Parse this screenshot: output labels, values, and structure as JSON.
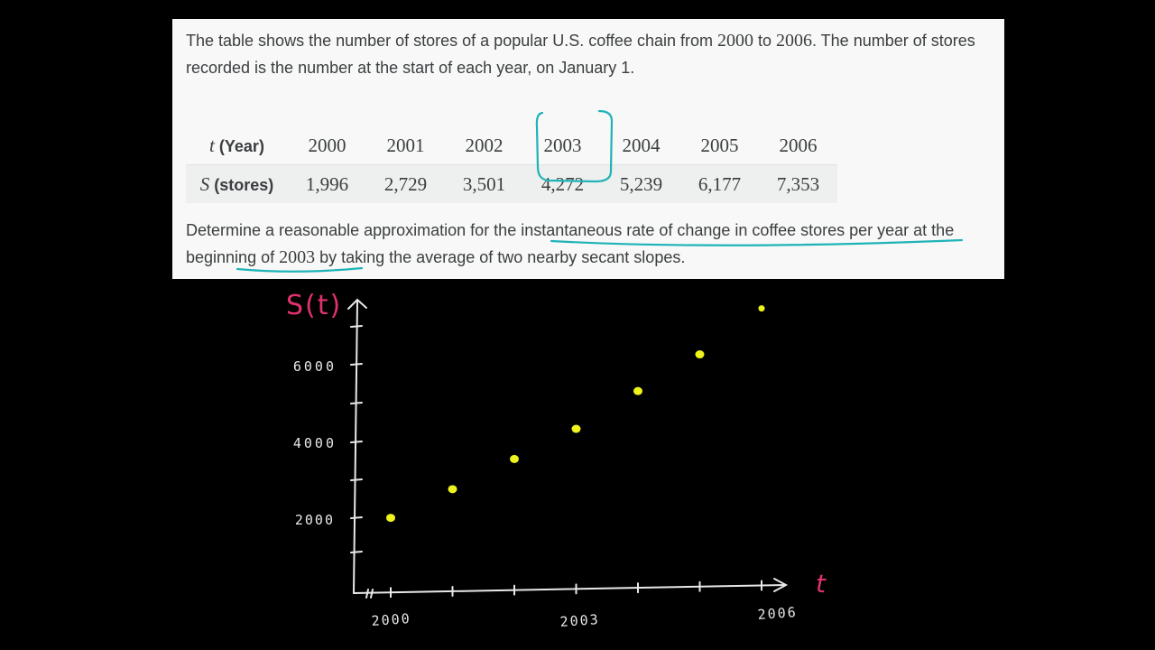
{
  "problem": {
    "intro_a": "The table shows the number of stores of a popular U.S. coffee chain from ",
    "intro_year_start": "2000",
    "intro_b": " to ",
    "intro_year_end": "2006",
    "intro_c": ". The number of stores recorded is the number at the start of each year, on January 1.",
    "question_a": "Determine a reasonable approximation for the ",
    "question_highlight": "instantaneous rate of change in coffee stores per year",
    "question_b": " at the ",
    "question_highlight2_text": "beginning of ",
    "question_highlight2_year": "2003",
    "question_c": " by taking the average of two nearby secant slopes."
  },
  "table": {
    "year_var": "t",
    "year_label": "(Year)",
    "stores_var": "S",
    "stores_label": "(stores)",
    "years": [
      "2000",
      "2001",
      "2002",
      "2003",
      "2004",
      "2005",
      "2006"
    ],
    "stores": [
      "1,996",
      "2,729",
      "3,501",
      "4,272",
      "5,239",
      "6,177",
      "7,353"
    ],
    "highlighted_year": "2003"
  },
  "sketch": {
    "y_axis_label": "S(t)",
    "x_axis_label": "t",
    "y_ticks": [
      "6000",
      "4000",
      "2000"
    ],
    "x_ticks": [
      "2000",
      "2003",
      "2006"
    ],
    "points": [
      {
        "t": 2000,
        "s": 1996
      },
      {
        "t": 2001,
        "s": 2729
      },
      {
        "t": 2002,
        "s": 3501
      },
      {
        "t": 2003,
        "s": 4272
      },
      {
        "t": 2004,
        "s": 5239
      },
      {
        "t": 2005,
        "s": 6177
      },
      {
        "t": 2006,
        "s": 7353
      }
    ],
    "colors": {
      "ink": "#e8e8e8",
      "label_accent": "#e0336b",
      "points": "#eef31c",
      "highlight": "#1fb3b8"
    }
  }
}
